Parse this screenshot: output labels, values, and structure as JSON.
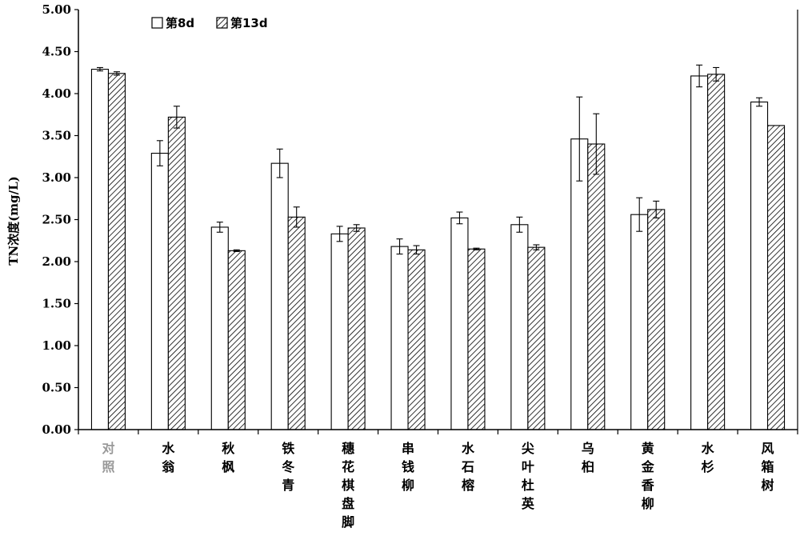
{
  "chart_data": {
    "type": "bar",
    "ylabel": "TN浓度(mg/L)",
    "ylim": [
      0,
      5
    ],
    "ytick_labels": [
      "0.00",
      "0.50",
      "1.00",
      "1.50",
      "2.00",
      "2.50",
      "3.00",
      "3.50",
      "4.00",
      "4.50",
      "5.00"
    ],
    "categories": [
      "对照",
      "水翁",
      "秋枫",
      "铁冬青",
      "穗花棋盘脚",
      "串钱柳",
      "水石榕",
      "尖叶杜英",
      "乌桕",
      "黄金香柳",
      "水杉",
      "风箱树"
    ],
    "category_colors": [
      "#999999",
      "#000000",
      "#000000",
      "#000000",
      "#000000",
      "#000000",
      "#000000",
      "#000000",
      "#000000",
      "#000000",
      "#000000",
      "#000000"
    ],
    "series": [
      {
        "name": "第8d",
        "values": [
          4.29,
          3.29,
          2.41,
          3.17,
          2.33,
          2.18,
          2.52,
          2.44,
          3.46,
          2.56,
          4.21,
          3.9
        ],
        "errors": [
          0.02,
          0.15,
          0.06,
          0.17,
          0.09,
          0.09,
          0.07,
          0.09,
          0.5,
          0.2,
          0.13,
          0.05
        ],
        "fill": "white"
      },
      {
        "name": "第13d",
        "values": [
          4.24,
          3.72,
          2.13,
          2.53,
          2.4,
          2.14,
          2.15,
          2.17,
          3.4,
          2.62,
          4.23,
          3.62
        ],
        "errors": [
          0.02,
          0.13,
          0.01,
          0.12,
          0.04,
          0.05,
          0.01,
          0.03,
          0.36,
          0.1,
          0.08,
          0.0
        ],
        "fill": "hatch"
      }
    ],
    "legend_position": "top-left"
  }
}
